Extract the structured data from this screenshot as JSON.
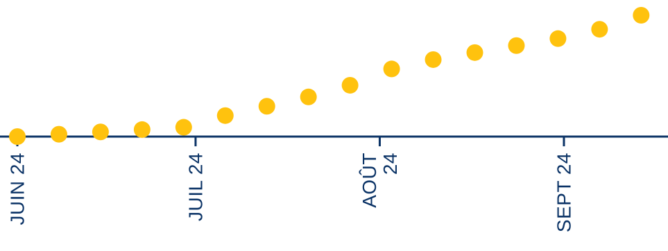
{
  "chart_data": {
    "type": "scatter",
    "title": "",
    "xlabel": "",
    "ylabel": "",
    "x": [
      "2024-06-01",
      "2024-06-08",
      "2024-06-15",
      "2024-06-22",
      "2024-06-29",
      "2024-07-06",
      "2024-07-13",
      "2024-07-20",
      "2024-07-27",
      "2024-08-03",
      "2024-08-10",
      "2024-08-17",
      "2024-08-24",
      "2024-08-31",
      "2024-09-07",
      "2024-09-14"
    ],
    "series": [
      {
        "values": [
          0.0,
          0.5,
          1.0,
          1.5,
          2.0,
          4.5,
          6.5,
          8.5,
          11.0,
          14.5,
          16.5,
          18.0,
          19.5,
          21.0,
          23.0,
          26.0
        ]
      }
    ],
    "xlim": [
      "2024-06-01",
      "2024-09-17"
    ],
    "ylim": [
      0,
      26
    ],
    "x_ticks": [
      {
        "date": "2024-06-01",
        "label": [
          "JUIN 24"
        ]
      },
      {
        "date": "2024-07-01",
        "label": [
          "JUIL 24"
        ]
      },
      {
        "date": "2024-08-01",
        "label": [
          "AOÛT",
          "24"
        ]
      },
      {
        "date": "2024-09-01",
        "label": [
          "SEPT 24"
        ]
      }
    ],
    "grid": false,
    "colors": {
      "points": "#FFC20E",
      "axis": "#0B3366",
      "text": "#0B3366"
    }
  }
}
